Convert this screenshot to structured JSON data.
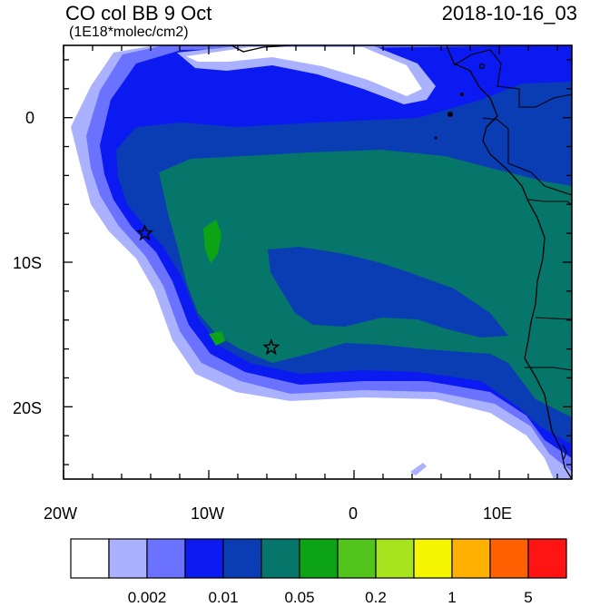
{
  "header": {
    "title": "CO col BB 9 Oct",
    "subtitle": "(1E18*molec/cm2)",
    "datetime": "2018-10-16_03"
  },
  "axes": {
    "x_ticks": [
      "20W",
      "10W",
      "0",
      "10E"
    ],
    "y_ticks": [
      "0",
      "10S",
      "20S"
    ]
  },
  "colorbar": {
    "colors": [
      "#ffffff",
      "#aab2ff",
      "#6a72ff",
      "#0a1af0",
      "#0a3cb4",
      "#06766a",
      "#0ca414",
      "#52c41c",
      "#a8e41e",
      "#f6f600",
      "#ffb000",
      "#ff6000",
      "#ff1414"
    ],
    "labels": [
      "0.002",
      "0.01",
      "0.05",
      "0.2",
      "1",
      "5"
    ]
  },
  "markers": [
    {
      "name": "star-marker",
      "lon": -14.4,
      "lat": -8.0
    },
    {
      "name": "star-marker",
      "lon": -5.7,
      "lat": -15.9
    }
  ]
}
